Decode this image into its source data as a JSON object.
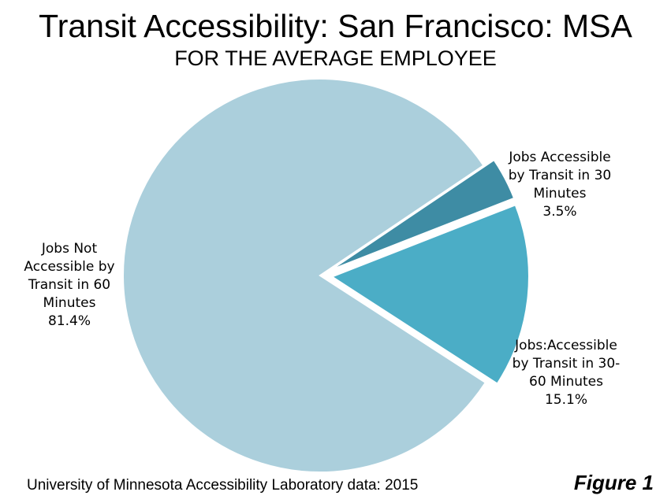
{
  "chart_data": {
    "type": "pie",
    "title": "Transit Accessibility: San Francisco: MSA",
    "subtitle": "FOR THE AVERAGE EMPLOYEE",
    "slices": [
      {
        "label_lines": [
          "Jobs Accessible",
          "by Transit in 30",
          "Minutes"
        ],
        "value": 3.5,
        "value_label": "3.5%",
        "color": "#3e8ca4",
        "exploded": true
      },
      {
        "label_lines": [
          "Jobs:Accessible",
          "by Transit in 30-",
          "60 Minutes"
        ],
        "value": 15.1,
        "value_label": "15.1%",
        "color": "#4badc6",
        "exploded": true
      },
      {
        "label_lines": [
          "Jobs Not",
          "Accessible by",
          "Transit in 60",
          "Minutes"
        ],
        "value": 81.4,
        "value_label": "81.4%",
        "color": "#abcfdc",
        "exploded": false
      }
    ]
  },
  "footer": {
    "source": "University of Minnesota Accessibility Laboratory data: 2015",
    "figure": "Figure 1"
  }
}
